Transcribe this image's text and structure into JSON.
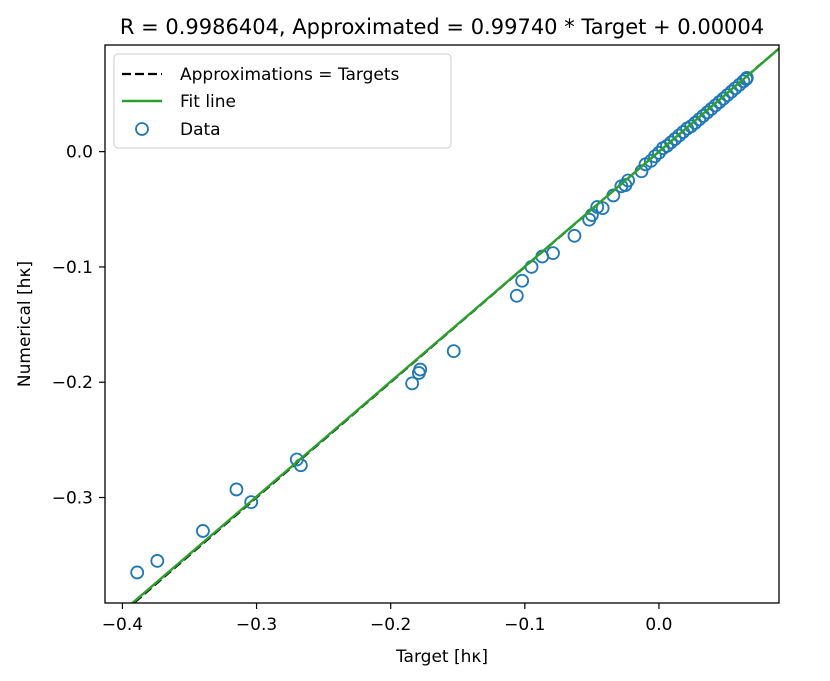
{
  "chart_data": {
    "type": "scatter",
    "title": "R = 0.9986404, Approximated = 0.99740 * Target + 0.00004",
    "xlabel": "Target [hκ]",
    "ylabel": "Numerical [hκ]",
    "xlim": [
      -0.413,
      0.0895
    ],
    "ylim": [
      -0.3915,
      0.0925
    ],
    "x_ticks": [
      {
        "value": -0.4,
        "label": "−0.4"
      },
      {
        "value": -0.3,
        "label": "−0.3"
      },
      {
        "value": -0.2,
        "label": "−0.2"
      },
      {
        "value": -0.1,
        "label": "−0.1"
      },
      {
        "value": 0.0,
        "label": "0.0"
      }
    ],
    "y_ticks": [
      {
        "value": -0.3,
        "label": "−0.3"
      },
      {
        "value": -0.2,
        "label": "−0.2"
      },
      {
        "value": -0.1,
        "label": "−0.1"
      },
      {
        "value": 0.0,
        "label": "0.0"
      }
    ],
    "grid": false,
    "legend_position": "top-left",
    "legend": [
      {
        "label": "Approximations = Targets",
        "style": "dashed-line",
        "color": "#000000"
      },
      {
        "label": "Fit line",
        "style": "line",
        "color": "#2ca02c"
      },
      {
        "label": "Data",
        "style": "hollow-circle",
        "color": "#1f77b4"
      }
    ],
    "fit": {
      "slope": 0.9974,
      "intercept": 4e-05
    },
    "series": [
      {
        "name": "Data",
        "kind": "scatter",
        "color": "#1f77b4",
        "points": [
          [
            -0.389,
            -0.365
          ],
          [
            -0.374,
            -0.355
          ],
          [
            -0.34,
            -0.329
          ],
          [
            -0.315,
            -0.293
          ],
          [
            -0.304,
            -0.304
          ],
          [
            -0.27,
            -0.267
          ],
          [
            -0.267,
            -0.272
          ],
          [
            -0.184,
            -0.201
          ],
          [
            -0.179,
            -0.192
          ],
          [
            -0.178,
            -0.189
          ],
          [
            -0.153,
            -0.173
          ],
          [
            -0.106,
            -0.125
          ],
          [
            -0.102,
            -0.112
          ],
          [
            -0.095,
            -0.1
          ],
          [
            -0.087,
            -0.091
          ],
          [
            -0.079,
            -0.088
          ],
          [
            -0.063,
            -0.073
          ],
          [
            -0.052,
            -0.059
          ],
          [
            -0.05,
            -0.055
          ],
          [
            -0.046,
            -0.048
          ],
          [
            -0.042,
            -0.049
          ],
          [
            -0.034,
            -0.038
          ],
          [
            -0.028,
            -0.03
          ],
          [
            -0.025,
            -0.029
          ],
          [
            -0.023,
            -0.025
          ],
          [
            -0.013,
            -0.017
          ],
          [
            -0.01,
            -0.011
          ],
          [
            -0.006,
            -0.008
          ],
          [
            -0.003,
            -0.004
          ],
          [
            0.0,
            -0.001
          ],
          [
            0.003,
            0.003
          ],
          [
            0.006,
            0.005
          ],
          [
            0.009,
            0.008
          ],
          [
            0.012,
            0.011
          ],
          [
            0.015,
            0.014
          ],
          [
            0.018,
            0.017
          ],
          [
            0.021,
            0.02
          ],
          [
            0.024,
            0.022
          ],
          [
            0.027,
            0.025
          ],
          [
            0.03,
            0.028
          ],
          [
            0.033,
            0.031
          ],
          [
            0.036,
            0.034
          ],
          [
            0.039,
            0.037
          ],
          [
            0.042,
            0.04
          ],
          [
            0.045,
            0.043
          ],
          [
            0.048,
            0.046
          ],
          [
            0.051,
            0.049
          ],
          [
            0.054,
            0.052
          ],
          [
            0.057,
            0.055
          ],
          [
            0.06,
            0.058
          ],
          [
            0.063,
            0.061
          ],
          [
            0.065,
            0.063
          ],
          [
            0.0655,
            0.064
          ]
        ]
      }
    ]
  }
}
